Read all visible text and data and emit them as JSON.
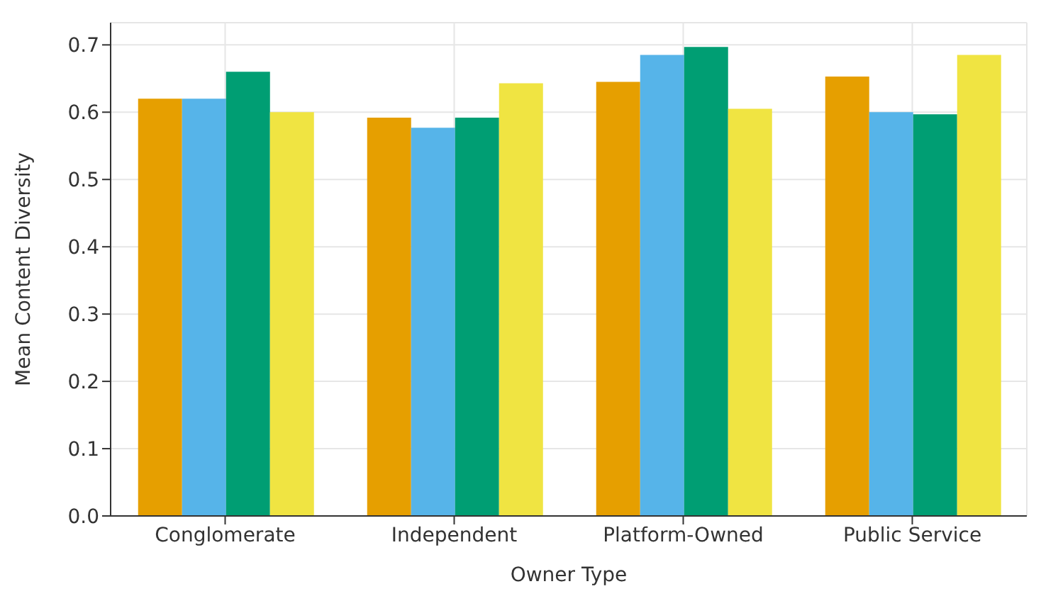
{
  "chart_data": {
    "type": "bar",
    "xlabel": "Owner Type",
    "ylabel": "Mean Content Diversity",
    "categories": [
      "Conglomerate",
      "Independent",
      "Platform-Owned",
      "Public Service"
    ],
    "series": [
      {
        "color": "#e69f00",
        "values": [
          0.62,
          0.592,
          0.645,
          0.653
        ]
      },
      {
        "color": "#56b4e9",
        "values": [
          0.62,
          0.577,
          0.685,
          0.6
        ]
      },
      {
        "color": "#009e73",
        "values": [
          0.66,
          0.592,
          0.697,
          0.597
        ]
      },
      {
        "color": "#f0e442",
        "values": [
          0.6,
          0.643,
          0.605,
          0.685
        ]
      }
    ],
    "ylim": [
      0,
      0.733
    ],
    "yticks": [
      {
        "value": 0,
        "label": "0.0"
      },
      0.1,
      0.2,
      0.3,
      0.4,
      0.5,
      0.6,
      0.7
    ],
    "grid": true,
    "legend": false
  }
}
